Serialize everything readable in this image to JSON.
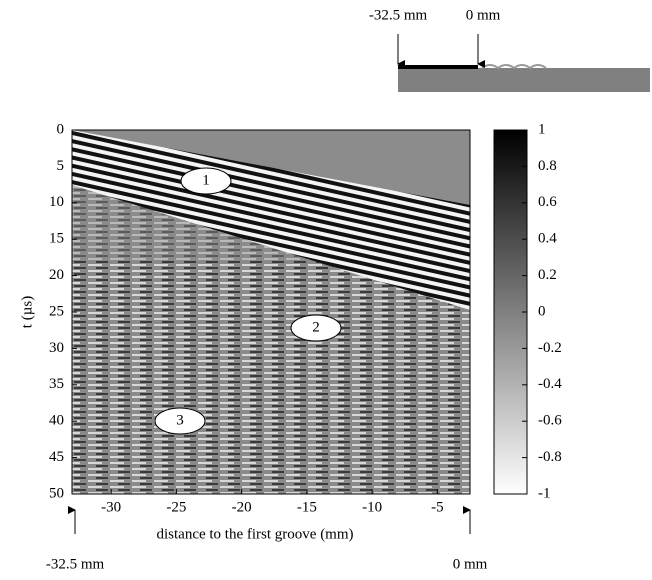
{
  "chart_data": {
    "type": "heatmap",
    "xlabel": "distance to the first groove (mm)",
    "ylabel": "t (µs)",
    "xlim": [
      -33,
      -2.5
    ],
    "xticks": [
      -30,
      -25,
      -20,
      -15,
      -10,
      -5
    ],
    "ylim": [
      0,
      50
    ],
    "yticks": [
      0,
      5,
      10,
      15,
      20,
      25,
      30,
      35,
      40,
      45,
      50
    ],
    "colorbar": {
      "lim": [
        -1,
        1
      ],
      "ticks": [
        1,
        0.8,
        0.6,
        0.4,
        0.2,
        0,
        -0.2,
        -0.4,
        -0.6,
        -0.8,
        -1
      ]
    },
    "annotations": [
      {
        "text": "1"
      },
      {
        "text": "2"
      },
      {
        "text": "3"
      }
    ],
    "markers": {
      "start": "-32.5 mm",
      "end": "0 mm"
    },
    "inset": {
      "start": "-32.5 mm",
      "end": "0 mm"
    }
  }
}
